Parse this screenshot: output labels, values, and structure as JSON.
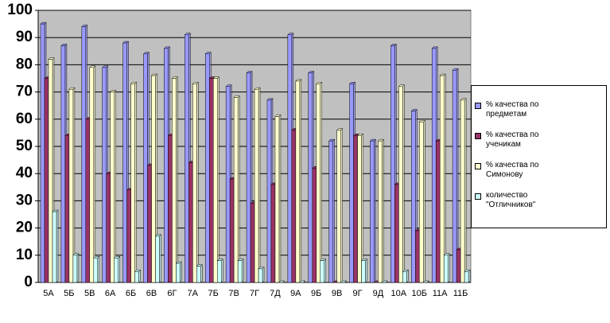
{
  "chart_data": {
    "type": "bar",
    "categories": [
      "5А",
      "5Б",
      "5В",
      "6А",
      "6Б",
      "6В",
      "6Г",
      "7А",
      "7Б",
      "7В",
      "7Г",
      "7Д",
      "9А",
      "9Б",
      "9В",
      "9Г",
      "9Д",
      "10А",
      "10Б",
      "11А",
      "11Б"
    ],
    "series": [
      {
        "name": "% качества по предметам",
        "color": "#9999ff",
        "values": [
          95,
          87,
          94,
          79,
          88,
          84,
          86,
          91,
          84,
          72,
          77,
          67,
          91,
          77,
          52,
          73,
          52,
          87,
          63,
          86,
          78
        ]
      },
      {
        "name": "% качества по ученикам",
        "color": "#993366",
        "values": [
          75,
          54,
          60,
          40,
          34,
          43,
          54,
          44,
          75,
          38,
          29,
          36,
          56,
          42,
          0,
          54,
          0,
          36,
          19,
          52,
          12
        ]
      },
      {
        "name": "% качества по Симонову",
        "color": "#ffffcc",
        "values": [
          82,
          71,
          79,
          70,
          73,
          76,
          75,
          73,
          75,
          68,
          71,
          61,
          74,
          73,
          56,
          54,
          52,
          72,
          59,
          76,
          67
        ]
      },
      {
        "name": "количество \"Отличников\"",
        "color": "#ccffff",
        "values": [
          26,
          10,
          9,
          9,
          4,
          17,
          7,
          6,
          8,
          8,
          5,
          0,
          0,
          8,
          0,
          8,
          0,
          4,
          0,
          10,
          4
        ]
      }
    ],
    "ylim": [
      0,
      100
    ],
    "yticks": [
      0,
      10,
      20,
      30,
      40,
      50,
      60,
      70,
      80,
      90,
      100
    ],
    "grid": true,
    "legend": "right"
  }
}
